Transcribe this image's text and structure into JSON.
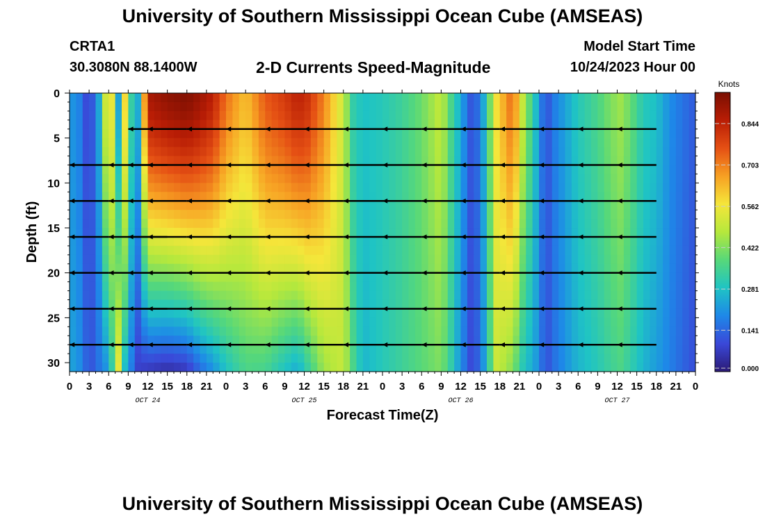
{
  "header": {
    "title": "University of Southern Mississippi Ocean Cube (AMSEAS)",
    "station": "CRTA1",
    "coords": "30.3080N  88.1400W",
    "plot_title": "2-D Currents Speed-Magnitude",
    "model_start_label": "Model Start Time",
    "model_start_value": "10/24/2023 Hour 00",
    "footer_title": "University of Southern Mississippi Ocean Cube (AMSEAS)"
  },
  "colors": {
    "colormap": [
      "#2b1a75",
      "#3a48d8",
      "#1e88e8",
      "#1fc4c4",
      "#57d879",
      "#b6e83c",
      "#f5e63a",
      "#f7a023",
      "#e55014",
      "#b91d05",
      "#7a0f02"
    ]
  },
  "chart_data": {
    "type": "heatmap",
    "title": "2-D Currents Speed-Magnitude",
    "xlabel": "Forecast Time(Z)",
    "ylabel": "Depth (ft)",
    "x_range_hours": [
      0,
      96
    ],
    "y_range_ft": [
      0,
      31
    ],
    "x_tick_labels": [
      "0",
      "3",
      "6",
      "9",
      "12",
      "15",
      "18",
      "21",
      "0",
      "3",
      "6",
      "9",
      "12",
      "15",
      "18",
      "21",
      "0",
      "3",
      "6",
      "9",
      "12",
      "15",
      "18",
      "21",
      "0",
      "3",
      "6",
      "9",
      "12",
      "15",
      "18",
      "21",
      "0"
    ],
    "y_ticks": [
      0,
      5,
      10,
      15,
      20,
      25,
      30
    ],
    "date_labels": [
      "OCT 24",
      "OCT 25",
      "OCT 26",
      "OCT 27"
    ],
    "colorbar": {
      "title": "Knots",
      "ticks": [
        "0.844",
        "0.703",
        "0.562",
        "0.422",
        "0.281",
        "0.141",
        "0.000"
      ],
      "range": [
        0,
        0.95
      ]
    },
    "speed_by_time": {
      "hours": [
        0,
        1.5,
        2.5,
        3.5,
        5,
        6,
        6.8,
        7.6,
        8.4,
        9.2,
        10.5,
        12,
        15,
        18,
        20,
        22,
        24,
        27,
        30,
        33,
        35,
        36.5,
        39,
        42,
        43.5,
        45,
        48,
        51,
        54,
        57,
        58.5,
        60,
        61.5,
        63,
        65.5,
        68,
        69.5,
        72,
        73,
        74.5,
        78,
        81,
        83,
        84.5,
        86,
        88,
        90,
        92,
        94,
        96
      ],
      "speed_surface": [
        0.22,
        0.18,
        0.1,
        0.12,
        0.3,
        0.72,
        0.45,
        0.2,
        0.62,
        0.35,
        0.25,
        0.88,
        0.92,
        0.94,
        0.9,
        0.85,
        0.72,
        0.62,
        0.75,
        0.8,
        0.85,
        0.82,
        0.7,
        0.5,
        0.32,
        0.28,
        0.3,
        0.34,
        0.4,
        0.5,
        0.36,
        0.24,
        0.12,
        0.16,
        0.58,
        0.74,
        0.5,
        0.22,
        0.1,
        0.18,
        0.3,
        0.36,
        0.42,
        0.45,
        0.4,
        0.3,
        0.28,
        0.2,
        0.16,
        0.12
      ],
      "speed_bottom": [
        0.24,
        0.2,
        0.14,
        0.12,
        0.18,
        0.22,
        0.38,
        0.58,
        0.28,
        0.2,
        0.08,
        0.06,
        0.04,
        0.06,
        0.14,
        0.2,
        0.28,
        0.36,
        0.35,
        0.28,
        0.24,
        0.32,
        0.45,
        0.5,
        0.36,
        0.26,
        0.3,
        0.34,
        0.38,
        0.42,
        0.32,
        0.2,
        0.1,
        0.14,
        0.5,
        0.42,
        0.3,
        0.2,
        0.1,
        0.16,
        0.26,
        0.3,
        0.34,
        0.36,
        0.32,
        0.26,
        0.22,
        0.18,
        0.14,
        0.1
      ]
    },
    "vectors": {
      "depths_ft": [
        4,
        8,
        12,
        16,
        20,
        24,
        28
      ],
      "hours": [
        0,
        6,
        12,
        15,
        18,
        24,
        30,
        36,
        42,
        48,
        54,
        60,
        66,
        72,
        78,
        84,
        90,
        96
      ],
      "rows": [
        [
          [
            -6,
            0
          ],
          [
            0,
            0
          ],
          [
            0,
            0
          ],
          [
            -6,
            0
          ],
          [
            -6,
            0
          ],
          [
            -6,
            0
          ],
          [
            -6,
            0
          ],
          [
            -6,
            0
          ],
          [
            -6,
            0
          ],
          [
            -6,
            0
          ],
          [
            -6,
            0
          ],
          [
            -6,
            0
          ],
          [
            -6,
            0
          ],
          [
            -6,
            0
          ],
          [
            -6,
            0
          ],
          [
            -6,
            0
          ],
          [
            -6,
            0
          ],
          [
            0,
            0
          ]
        ],
        [
          [
            0,
            0
          ],
          [
            -6,
            0
          ],
          [
            -6,
            0
          ],
          [
            -6,
            0
          ],
          [
            -6,
            0
          ],
          [
            -6,
            0
          ],
          [
            -6,
            0
          ],
          [
            -6,
            0
          ],
          [
            -6,
            0
          ],
          [
            -6,
            0
          ],
          [
            -6,
            0
          ],
          [
            -6,
            0
          ],
          [
            -6,
            0
          ],
          [
            -6,
            0
          ],
          [
            -6,
            0
          ],
          [
            -6,
            0
          ],
          [
            -6,
            0
          ],
          [
            0,
            0
          ]
        ],
        [
          [
            -6,
            0
          ],
          [
            -6,
            0
          ],
          [
            -6,
            0
          ],
          [
            -6,
            0
          ],
          [
            -6,
            0
          ],
          [
            -6,
            0
          ],
          [
            -6,
            0
          ],
          [
            -6,
            0
          ],
          [
            -6,
            0
          ],
          [
            -6,
            0
          ],
          [
            -6,
            0
          ],
          [
            -6,
            0
          ],
          [
            -6,
            0
          ],
          [
            -6,
            0
          ],
          [
            -6,
            0
          ],
          [
            -6,
            0
          ],
          [
            -6,
            0
          ],
          [
            0,
            0
          ]
        ],
        [
          [
            -6,
            0
          ],
          [
            -6,
            0
          ],
          [
            -6,
            0
          ],
          [
            -6,
            0
          ],
          [
            -6,
            0
          ],
          [
            -6,
            0
          ],
          [
            -6,
            0
          ],
          [
            -6,
            0
          ],
          [
            -6,
            0
          ],
          [
            -6,
            0
          ],
          [
            -6,
            0
          ],
          [
            -6,
            0
          ],
          [
            -6,
            0
          ],
          [
            -6,
            0
          ],
          [
            -6,
            0
          ],
          [
            -6,
            0
          ],
          [
            -6,
            0
          ],
          [
            0,
            0
          ]
        ],
        [
          [
            -6,
            0
          ],
          [
            -6,
            0
          ],
          [
            -6,
            0
          ],
          [
            -6,
            0
          ],
          [
            -6,
            0
          ],
          [
            -6,
            0
          ],
          [
            -6,
            0
          ],
          [
            -6,
            0
          ],
          [
            -6,
            0
          ],
          [
            -6,
            0
          ],
          [
            -6,
            0
          ],
          [
            -6,
            0
          ],
          [
            -6,
            0
          ],
          [
            -6,
            0
          ],
          [
            -6,
            0
          ],
          [
            -6,
            0
          ],
          [
            -6,
            0
          ],
          [
            0,
            0
          ]
        ],
        [
          [
            -6,
            0
          ],
          [
            -6,
            0
          ],
          [
            -6,
            0
          ],
          [
            -6,
            0
          ],
          [
            -6,
            0
          ],
          [
            -6,
            0
          ],
          [
            -6,
            0
          ],
          [
            -6,
            0
          ],
          [
            -6,
            0
          ],
          [
            -6,
            0
          ],
          [
            -6,
            0
          ],
          [
            -6,
            0
          ],
          [
            -6,
            0
          ],
          [
            -6,
            0
          ],
          [
            -6,
            0
          ],
          [
            -6,
            0
          ],
          [
            -6,
            0
          ],
          [
            0,
            0
          ]
        ],
        [
          [
            -6,
            0
          ],
          [
            -6,
            0
          ],
          [
            -6,
            0
          ],
          [
            -6,
            0
          ],
          [
            -6,
            0
          ],
          [
            -6,
            0
          ],
          [
            -6,
            0
          ],
          [
            -6,
            0
          ],
          [
            -6,
            0
          ],
          [
            -6,
            0
          ],
          [
            -6,
            0
          ],
          [
            -6,
            0
          ],
          [
            -6,
            0
          ],
          [
            -6,
            0
          ],
          [
            -6,
            0
          ],
          [
            -6,
            0
          ],
          [
            -6,
            0
          ],
          [
            0,
            0
          ]
        ]
      ]
    }
  }
}
